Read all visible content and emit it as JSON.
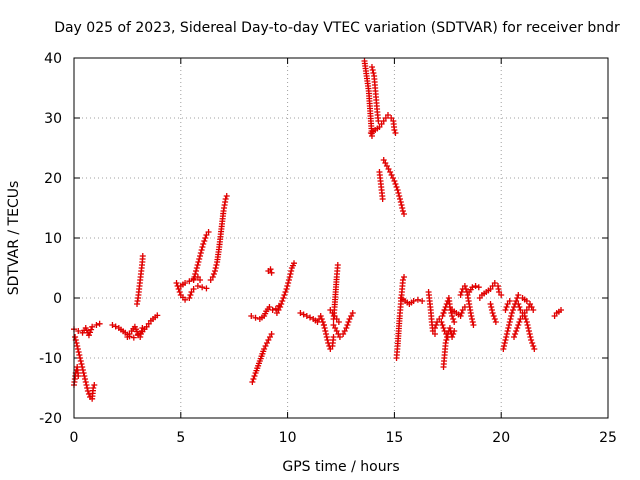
{
  "chart_data": {
    "type": "scatter",
    "title": "Day 025 of 2023, Sidereal Day-to-day VTEC variation (SDTVAR) for receiver bndr",
    "xlabel": "GPS time / hours",
    "ylabel": "SDTVAR / TECUs",
    "xlim": [
      0,
      25
    ],
    "ylim": [
      -20,
      40
    ],
    "xticks": [
      0,
      5,
      10,
      15,
      20,
      25
    ],
    "yticks": [
      -20,
      -10,
      0,
      10,
      20,
      30,
      40
    ],
    "xtick_labels": [
      "0",
      "5",
      "10",
      "15",
      "20",
      "25"
    ],
    "ytick_labels": [
      "-20",
      "-10",
      "0",
      "10",
      "20",
      "30",
      "40"
    ],
    "grid": true,
    "marker": "plus",
    "color": "#e00000",
    "segments": [
      [
        [
          0.0,
          -5.2
        ],
        [
          0.2,
          -5.5
        ],
        [
          0.4,
          -5.8
        ],
        [
          0.55,
          -5.0
        ],
        [
          0.7,
          -6.2
        ],
        [
          0.85,
          -4.8
        ],
        [
          1.05,
          -4.5
        ],
        [
          1.2,
          -4.3
        ]
      ],
      [
        [
          0.05,
          -6.5
        ],
        [
          0.15,
          -8.0
        ],
        [
          0.25,
          -9.5
        ],
        [
          0.35,
          -11.0
        ],
        [
          0.45,
          -12.5
        ],
        [
          0.55,
          -14.0
        ],
        [
          0.65,
          -15.5
        ],
        [
          0.75,
          -16.5
        ],
        [
          0.85,
          -16.8
        ],
        [
          0.9,
          -15.0
        ],
        [
          0.95,
          -14.5
        ]
      ],
      [
        [
          0.0,
          -14.5
        ],
        [
          0.08,
          -12.5
        ],
        [
          0.15,
          -11.5
        ],
        [
          0.2,
          -13.0
        ]
      ],
      [
        [
          1.8,
          -4.5
        ],
        [
          2.1,
          -5.0
        ],
        [
          2.4,
          -5.8
        ],
        [
          2.6,
          -6.4
        ],
        [
          2.8,
          -6.6
        ],
        [
          3.0,
          -6.2
        ],
        [
          3.2,
          -5.6
        ],
        [
          3.4,
          -4.8
        ],
        [
          3.6,
          -3.8
        ],
        [
          3.8,
          -3.2
        ],
        [
          3.9,
          -2.9
        ]
      ],
      [
        [
          2.5,
          -6.5
        ],
        [
          2.7,
          -5.5
        ],
        [
          2.85,
          -4.8
        ],
        [
          3.0,
          -6.0
        ],
        [
          3.1,
          -6.5
        ],
        [
          3.2,
          -5.0
        ]
      ],
      [
        [
          2.95,
          -1.0
        ],
        [
          3.0,
          0.0
        ],
        [
          3.05,
          1.5
        ],
        [
          3.1,
          3.0
        ],
        [
          3.15,
          4.5
        ],
        [
          3.2,
          6.0
        ],
        [
          3.22,
          7.0
        ]
      ],
      [
        [
          4.8,
          2.5
        ],
        [
          4.9,
          1.5
        ],
        [
          5.0,
          0.5
        ],
        [
          5.2,
          -0.3
        ],
        [
          5.4,
          0.0
        ],
        [
          5.5,
          1.0
        ],
        [
          5.6,
          1.5
        ]
      ],
      [
        [
          5.0,
          2.0
        ],
        [
          5.2,
          2.5
        ],
        [
          5.4,
          2.8
        ],
        [
          5.6,
          3.2
        ],
        [
          5.8,
          3.5
        ],
        [
          5.9,
          3.0
        ]
      ],
      [
        [
          5.6,
          3.0
        ],
        [
          5.75,
          5.0
        ],
        [
          5.9,
          7.0
        ],
        [
          6.05,
          9.0
        ],
        [
          6.2,
          10.5
        ],
        [
          6.3,
          11.0
        ]
      ],
      [
        [
          5.8,
          2.0
        ],
        [
          6.0,
          1.8
        ],
        [
          6.2,
          1.6
        ]
      ],
      [
        [
          6.4,
          3.0
        ],
        [
          6.5,
          3.5
        ],
        [
          6.6,
          4.5
        ],
        [
          6.7,
          6.0
        ],
        [
          6.8,
          8.5
        ],
        [
          6.9,
          11.5
        ],
        [
          7.0,
          14.5
        ],
        [
          7.1,
          16.5
        ],
        [
          7.15,
          17.0
        ]
      ],
      [
        [
          8.35,
          -14.0
        ],
        [
          8.5,
          -12.5
        ],
        [
          8.7,
          -10.5
        ],
        [
          8.9,
          -8.5
        ],
        [
          9.1,
          -7.0
        ],
        [
          9.25,
          -6.0
        ]
      ],
      [
        [
          8.3,
          -3.0
        ],
        [
          8.5,
          -3.3
        ],
        [
          8.7,
          -3.5
        ],
        [
          8.9,
          -3.0
        ],
        [
          9.0,
          -2.2
        ],
        [
          9.15,
          -1.5
        ],
        [
          9.3,
          -2.0
        ],
        [
          9.45,
          -1.8
        ],
        [
          9.6,
          -1.3
        ]
      ],
      [
        [
          9.1,
          4.5
        ],
        [
          9.2,
          4.8
        ],
        [
          9.25,
          4.2
        ]
      ],
      [
        [
          9.5,
          -2.5
        ],
        [
          9.65,
          -1.5
        ],
        [
          9.8,
          0.0
        ],
        [
          9.95,
          1.5
        ],
        [
          10.1,
          3.5
        ],
        [
          10.2,
          5.0
        ],
        [
          10.3,
          5.8
        ]
      ],
      [
        [
          10.6,
          -2.5
        ],
        [
          10.9,
          -3.0
        ],
        [
          11.2,
          -3.5
        ],
        [
          11.4,
          -4.0
        ],
        [
          11.55,
          -3.0
        ],
        [
          11.7,
          -4.5
        ]
      ],
      [
        [
          11.7,
          -4.5
        ],
        [
          11.8,
          -6.0
        ],
        [
          11.9,
          -7.5
        ],
        [
          12.0,
          -8.5
        ],
        [
          12.1,
          -8.0
        ],
        [
          12.15,
          -6.5
        ]
      ],
      [
        [
          12.15,
          -3.5
        ],
        [
          12.2,
          -1.5
        ],
        [
          12.25,
          1.0
        ],
        [
          12.3,
          3.5
        ],
        [
          12.35,
          5.5
        ]
      ],
      [
        [
          12.15,
          -4.5
        ],
        [
          12.3,
          -5.5
        ],
        [
          12.45,
          -6.5
        ],
        [
          12.6,
          -6.0
        ],
        [
          12.75,
          -5.0
        ],
        [
          12.9,
          -3.5
        ],
        [
          13.05,
          -2.5
        ]
      ],
      [
        [
          12.0,
          -2.0
        ],
        [
          12.2,
          -3.0
        ],
        [
          12.4,
          -4.0
        ]
      ],
      [
        [
          13.6,
          39.5
        ],
        [
          13.7,
          37.0
        ],
        [
          13.8,
          34.5
        ],
        [
          13.85,
          32.0
        ],
        [
          13.9,
          29.5
        ],
        [
          13.95,
          27.0
        ]
      ],
      [
        [
          13.95,
          38.5
        ],
        [
          14.05,
          37.0
        ],
        [
          14.1,
          35.0
        ],
        [
          14.15,
          33.0
        ],
        [
          14.2,
          31.0
        ],
        [
          14.25,
          29.5
        ]
      ],
      [
        [
          13.9,
          27.5
        ],
        [
          14.1,
          28.0
        ],
        [
          14.3,
          28.5
        ],
        [
          14.5,
          29.5
        ],
        [
          14.7,
          30.5
        ],
        [
          14.85,
          30.0
        ],
        [
          14.95,
          29.5
        ],
        [
          15.0,
          28.0
        ],
        [
          15.05,
          27.5
        ]
      ],
      [
        [
          14.3,
          21.0
        ],
        [
          14.35,
          19.5
        ],
        [
          14.4,
          18.0
        ],
        [
          14.45,
          16.5
        ]
      ],
      [
        [
          14.5,
          23.0
        ],
        [
          14.65,
          22.0
        ],
        [
          14.8,
          21.0
        ],
        [
          15.0,
          19.5
        ],
        [
          15.15,
          18.0
        ],
        [
          15.3,
          16.0
        ],
        [
          15.4,
          14.5
        ],
        [
          15.45,
          14.0
        ]
      ],
      [
        [
          15.1,
          -10.0
        ],
        [
          15.15,
          -8.0
        ],
        [
          15.2,
          -5.5
        ],
        [
          15.25,
          -3.0
        ],
        [
          15.3,
          -1.0
        ],
        [
          15.35,
          1.0
        ],
        [
          15.4,
          3.0
        ],
        [
          15.45,
          3.5
        ]
      ],
      [
        [
          15.3,
          0.0
        ],
        [
          15.5,
          -0.5
        ],
        [
          15.7,
          -1.0
        ],
        [
          15.9,
          -0.5
        ],
        [
          16.1,
          -0.3
        ],
        [
          16.3,
          -0.5
        ]
      ],
      [
        [
          16.6,
          1.0
        ],
        [
          16.65,
          -0.5
        ],
        [
          16.7,
          -2.0
        ],
        [
          16.75,
          -4.0
        ],
        [
          16.8,
          -5.5
        ],
        [
          16.9,
          -6.0
        ]
      ],
      [
        [
          16.9,
          -5.0
        ],
        [
          17.0,
          -4.0
        ],
        [
          17.1,
          -3.5
        ],
        [
          17.25,
          -3.0
        ],
        [
          17.35,
          -2.0
        ]
      ],
      [
        [
          17.3,
          -11.5
        ],
        [
          17.35,
          -9.5
        ],
        [
          17.4,
          -7.5
        ],
        [
          17.5,
          -6.0
        ],
        [
          17.6,
          -5.0
        ],
        [
          17.7,
          -6.5
        ],
        [
          17.8,
          -5.5
        ]
      ],
      [
        [
          17.3,
          -2.5
        ],
        [
          17.45,
          -1.0
        ],
        [
          17.55,
          0.0
        ],
        [
          17.6,
          -1.5
        ],
        [
          17.7,
          -3.0
        ],
        [
          17.8,
          -4.0
        ]
      ],
      [
        [
          17.2,
          -4.0
        ],
        [
          17.35,
          -5.5
        ],
        [
          17.5,
          -6.5
        ]
      ],
      [
        [
          17.7,
          -2.0
        ],
        [
          17.9,
          -2.5
        ],
        [
          18.1,
          -3.0
        ],
        [
          18.2,
          -2.0
        ],
        [
          18.3,
          -1.5
        ]
      ],
      [
        [
          18.1,
          0.5
        ],
        [
          18.2,
          1.5
        ],
        [
          18.3,
          2.0
        ],
        [
          18.4,
          1.0
        ],
        [
          18.5,
          -1.0
        ],
        [
          18.6,
          -3.0
        ],
        [
          18.7,
          -4.5
        ]
      ],
      [
        [
          18.5,
          1.0
        ],
        [
          18.65,
          1.8
        ],
        [
          18.8,
          2.0
        ],
        [
          18.95,
          1.8
        ]
      ],
      [
        [
          19.0,
          0.0
        ],
        [
          19.1,
          0.5
        ],
        [
          19.3,
          1.0
        ],
        [
          19.5,
          1.5
        ],
        [
          19.6,
          2.0
        ],
        [
          19.7,
          2.5
        ],
        [
          19.85,
          2.0
        ],
        [
          19.9,
          1.0
        ],
        [
          20.0,
          0.5
        ]
      ],
      [
        [
          19.5,
          -1.0
        ],
        [
          19.6,
          -2.5
        ],
        [
          19.75,
          -4.0
        ]
      ],
      [
        [
          20.1,
          -8.5
        ],
        [
          20.2,
          -7.0
        ],
        [
          20.3,
          -5.5
        ],
        [
          20.4,
          -4.0
        ],
        [
          20.5,
          -2.5
        ],
        [
          20.6,
          -1.5
        ],
        [
          20.7,
          -0.5
        ],
        [
          20.8,
          0.5
        ]
      ],
      [
        [
          20.2,
          -2.0
        ],
        [
          20.3,
          -1.0
        ],
        [
          20.4,
          -0.5
        ]
      ],
      [
        [
          20.6,
          -6.5
        ],
        [
          20.7,
          -5.5
        ],
        [
          20.8,
          -4.5
        ],
        [
          20.9,
          -3.5
        ],
        [
          21.0,
          -3.0
        ],
        [
          21.1,
          -2.5
        ],
        [
          21.2,
          -2.0
        ],
        [
          21.3,
          -1.5
        ]
      ],
      [
        [
          20.8,
          -1.0
        ],
        [
          20.9,
          -2.0
        ],
        [
          21.0,
          -2.5
        ],
        [
          21.1,
          -3.0
        ],
        [
          21.2,
          -4.0
        ],
        [
          21.3,
          -5.5
        ],
        [
          21.4,
          -7.0
        ],
        [
          21.5,
          -8.0
        ],
        [
          21.55,
          -8.5
        ]
      ],
      [
        [
          21.0,
          0.0
        ],
        [
          21.2,
          -0.5
        ],
        [
          21.35,
          -1.0
        ],
        [
          21.5,
          -2.0
        ]
      ],
      [
        [
          22.5,
          -3.0
        ],
        [
          22.6,
          -2.5
        ],
        [
          22.7,
          -2.3
        ],
        [
          22.8,
          -2.0
        ]
      ]
    ]
  }
}
